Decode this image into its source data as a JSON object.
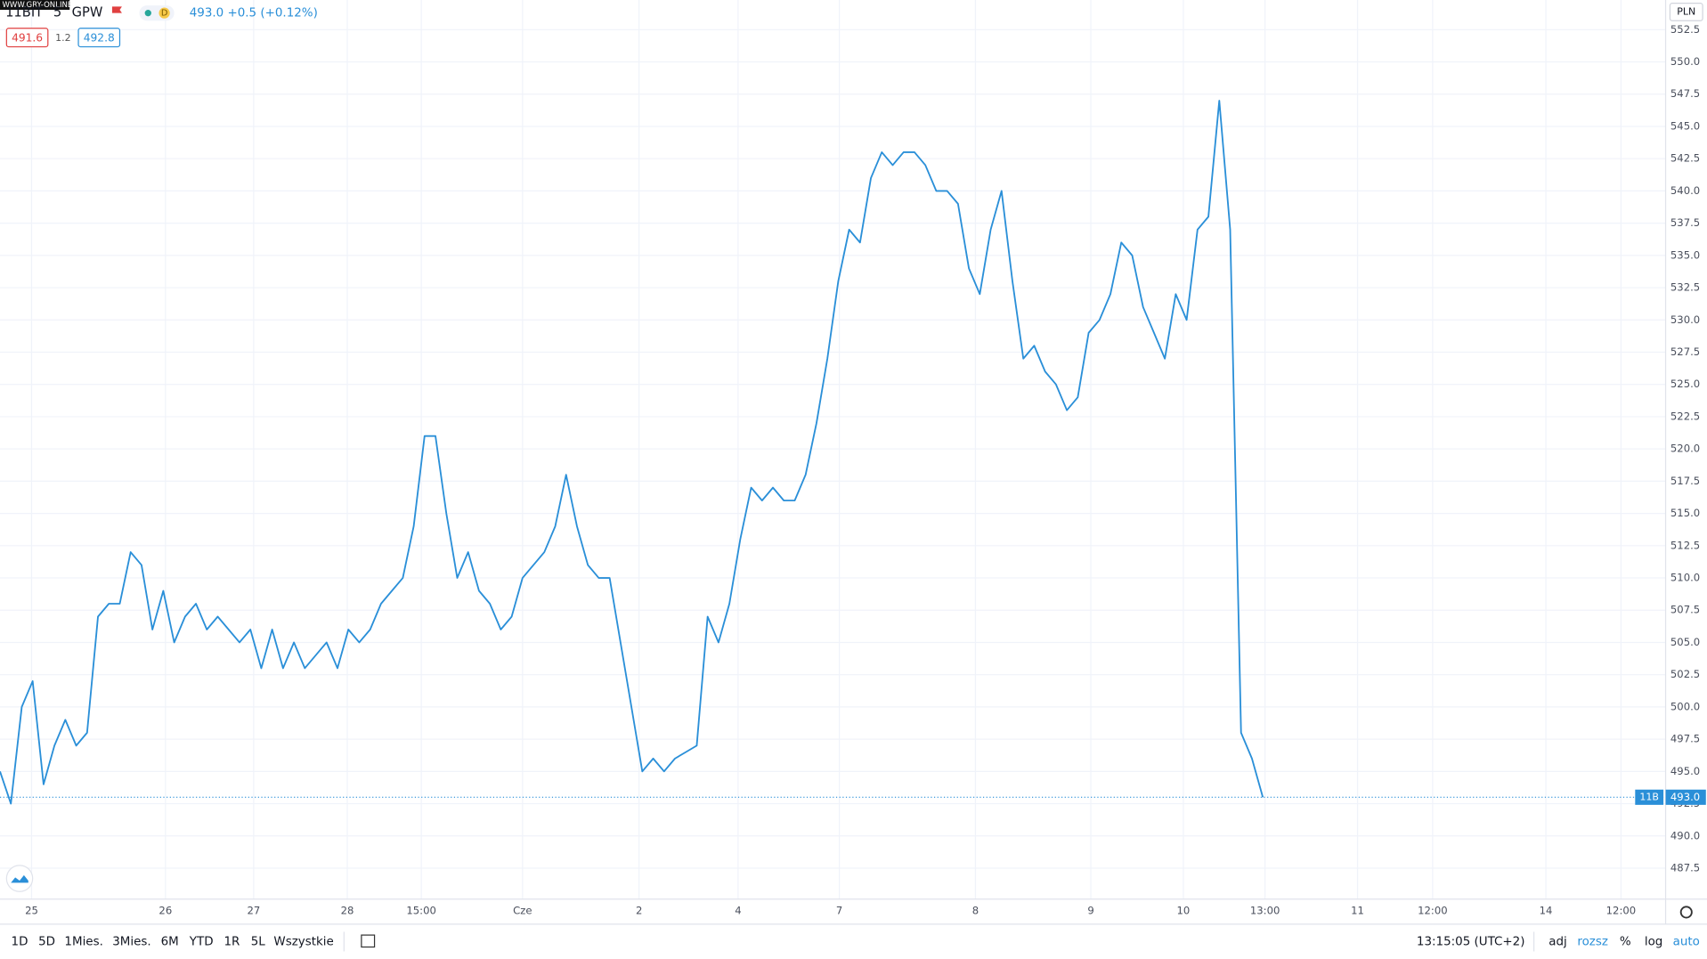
{
  "chart_data": {
    "type": "line",
    "x": [
      0,
      1,
      2,
      3,
      4,
      5,
      6,
      7,
      8,
      9,
      10,
      11,
      12,
      13,
      14,
      15,
      16,
      17,
      18,
      19,
      20,
      21,
      22,
      23,
      24,
      25,
      26,
      27,
      28,
      29,
      30,
      31,
      32,
      33,
      34,
      35,
      36,
      37,
      38,
      39,
      40,
      41,
      42,
      43,
      44,
      45,
      46,
      47,
      48,
      49,
      50,
      51,
      52,
      53,
      54,
      55,
      56,
      57,
      58,
      59,
      60,
      61,
      62,
      63,
      64,
      65,
      66,
      67,
      68,
      69,
      70,
      71,
      72,
      73,
      74,
      75,
      76,
      77,
      78,
      79,
      80,
      81,
      82,
      83,
      84,
      85,
      86,
      87,
      88,
      89,
      90,
      91,
      92,
      93,
      94,
      95,
      96,
      97,
      98,
      99,
      100,
      101,
      102,
      103,
      104,
      105,
      106,
      107,
      108,
      109,
      110,
      111,
      112,
      113,
      114,
      115,
      116
    ],
    "series": [
      {
        "name": "11B",
        "color": "#2a8fd8",
        "values": [
          495,
          492.5,
          500,
          502,
          494,
          497,
          499,
          497,
          498,
          507,
          508,
          508,
          512,
          511,
          506,
          509,
          505,
          507,
          508,
          506,
          507,
          506,
          505,
          506,
          503,
          506,
          503,
          505,
          503,
          504,
          505,
          503,
          506,
          505,
          506,
          508,
          509,
          510,
          514,
          521,
          521,
          515,
          510,
          512,
          509,
          508,
          506,
          507,
          510,
          511,
          512,
          514,
          518,
          514,
          511,
          510,
          510,
          505,
          500,
          495,
          496,
          495,
          496,
          496.5,
          497,
          507,
          505,
          508,
          513,
          517,
          516,
          517,
          516,
          516,
          518,
          522,
          527,
          533,
          537,
          536,
          541,
          543,
          542,
          543,
          543,
          542,
          540,
          540,
          539,
          534,
          532,
          537,
          540,
          533,
          527,
          528,
          526,
          525,
          523,
          524,
          529,
          530,
          532,
          536,
          535,
          531,
          529,
          527,
          532,
          530,
          537,
          538,
          547,
          537,
          498,
          496,
          493
        ]
      }
    ],
    "xlim": [
      0,
      153
    ],
    "xticks": [
      {
        "value": 2.9,
        "label": "25"
      },
      {
        "value": 15.2,
        "label": "26"
      },
      {
        "value": 23.3,
        "label": "27"
      },
      {
        "value": 31.9,
        "label": "28"
      },
      {
        "value": 38.7,
        "label": "15:00"
      },
      {
        "value": 48,
        "label": "Cze"
      },
      {
        "value": 58.7,
        "label": "2"
      },
      {
        "value": 67.8,
        "label": "4"
      },
      {
        "value": 77.1,
        "label": "7"
      },
      {
        "value": 89.6,
        "label": "8"
      },
      {
        "value": 100.2,
        "label": "9"
      },
      {
        "value": 108.7,
        "label": "10"
      },
      {
        "value": 116.2,
        "label": "13:00"
      },
      {
        "value": 124.7,
        "label": "11"
      },
      {
        "value": 131.6,
        "label": "12:00"
      },
      {
        "value": 142,
        "label": "14"
      },
      {
        "value": 148.9,
        "label": "12:00"
      }
    ],
    "ylim": [
      485.1,
      554.8
    ],
    "yticks": [
      487.5,
      {
        "value": 490,
        "label": "490.0"
      },
      492.5,
      {
        "value": 495,
        "label": "495.0"
      },
      497.5,
      {
        "value": 500,
        "label": "500.0"
      },
      502.5,
      {
        "value": 505,
        "label": "505.0"
      },
      507.5,
      {
        "value": 510,
        "label": "510.0"
      },
      512.5,
      {
        "value": 515,
        "label": "515.0"
      },
      517.5,
      {
        "value": 520,
        "label": "520.0"
      },
      522.5,
      {
        "value": 525,
        "label": "525.0"
      },
      527.5,
      {
        "value": 530,
        "label": "530.0"
      },
      532.5,
      {
        "value": 535,
        "label": "535.0"
      },
      537.5,
      {
        "value": 540,
        "label": "540.0"
      },
      542.5,
      {
        "value": 545,
        "label": "545.0"
      },
      547.5,
      {
        "value": 550,
        "label": "550.0"
      },
      552.5
    ],
    "grid": true
  },
  "ui": {
    "watermark": "WWW.GRY-ONLINE.PL",
    "symbol": "11BIT",
    "interval": "5",
    "exchange": "GPW",
    "interval_code": "D",
    "quote": "493.0 +0.5 (+0.12%)",
    "bid": "491.6",
    "spread": "1.2",
    "ask": "492.8",
    "currency": "PLN",
    "last_price": "493.0",
    "ranges": [
      "1D",
      "5D",
      "1Mies.",
      "3Mies.",
      "6M",
      "YTD",
      "1R",
      "5L",
      "Wszystkie"
    ],
    "clock": "13:15:05 (UTC+2)",
    "options": [
      "adj",
      "rozsz",
      "%",
      "log",
      "auto"
    ]
  }
}
